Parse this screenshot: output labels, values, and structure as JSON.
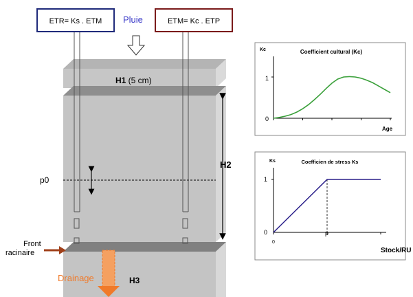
{
  "model": {
    "etr_formula": "ETR= Ks . ETM",
    "etm_formula": "ETM= Kc . ETP",
    "rain_label": "Pluie",
    "layer_h1_label": "H1",
    "layer_h1_depth": " (5 cm)",
    "layer_h2_label": "H2",
    "layer_h3_label": "H3",
    "p0_label": "p0",
    "front_label_line1": "Front",
    "front_label_line2": "racinaire",
    "drainage_label": "Drainage",
    "colors": {
      "etr_box": "#1f2a7a",
      "etm_box": "#7a1a1a",
      "rain_text": "#3a3ac8",
      "drainage": "#f07a2a",
      "root_front_arrow": "#a0401a",
      "soil": "#c4c4c4"
    }
  },
  "charts": {
    "kc": {
      "title": "Coefficient cultural (Kc)",
      "ylabel": "Kc",
      "xlabel": "Age",
      "ytick_1": "1",
      "ytick_0": "0"
    },
    "ks": {
      "title": "Coefficien de stress Ks",
      "ylabel": "Ks",
      "xlabel": "Stock/RU",
      "ytick_1": "1",
      "ytick_0": "0",
      "xtick_0": "0",
      "xtick_p": "p"
    }
  },
  "chart_data": [
    {
      "type": "line",
      "title": "Coefficient cultural (Kc)",
      "xlabel": "Age",
      "ylabel": "Kc",
      "ylim": [
        0,
        1.3
      ],
      "x": [
        0,
        0.05,
        0.1,
        0.15,
        0.2,
        0.25,
        0.3,
        0.35,
        0.4,
        0.45,
        0.5,
        0.55,
        0.6,
        0.65,
        0.7,
        0.75,
        0.8,
        0.85,
        0.9,
        0.95,
        1.0
      ],
      "series": [
        {
          "values": [
            0.0,
            0.02,
            0.05,
            0.09,
            0.15,
            0.23,
            0.33,
            0.45,
            0.58,
            0.72,
            0.85,
            0.95,
            1.0,
            1.01,
            1.0,
            0.97,
            0.92,
            0.86,
            0.78,
            0.7,
            0.62
          ],
          "color": "#3aa03a"
        }
      ],
      "grid": false
    },
    {
      "type": "line",
      "title": "Coefficien de stress Ks",
      "xlabel": "Stock/RU",
      "ylabel": "Ks",
      "ylim": [
        0,
        1.3
      ],
      "x": [
        0,
        0.5,
        1.0
      ],
      "series": [
        {
          "values": [
            0,
            1,
            1
          ],
          "color": "#2a1f8a"
        }
      ],
      "grid": false
    }
  ]
}
